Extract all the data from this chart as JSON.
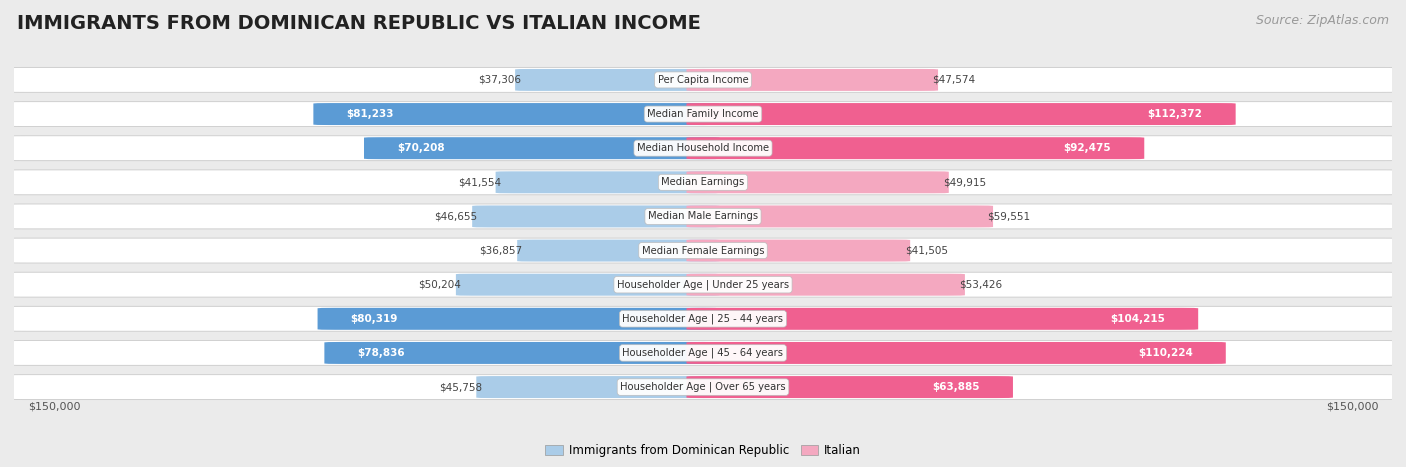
{
  "title": "IMMIGRANTS FROM DOMINICAN REPUBLIC VS ITALIAN INCOME",
  "source": "Source: ZipAtlas.com",
  "categories": [
    "Per Capita Income",
    "Median Family Income",
    "Median Household Income",
    "Median Earnings",
    "Median Male Earnings",
    "Median Female Earnings",
    "Householder Age | Under 25 years",
    "Householder Age | 25 - 44 years",
    "Householder Age | 45 - 64 years",
    "Householder Age | Over 65 years"
  ],
  "dominican_values": [
    37306,
    81233,
    70208,
    41554,
    46655,
    36857,
    50204,
    80319,
    78836,
    45758
  ],
  "italian_values": [
    47574,
    112372,
    92475,
    49915,
    59551,
    41505,
    53426,
    104215,
    110224,
    63885
  ],
  "dominican_labels": [
    "$37,306",
    "$81,233",
    "$70,208",
    "$41,554",
    "$46,655",
    "$36,857",
    "$50,204",
    "$80,319",
    "$78,836",
    "$45,758"
  ],
  "italian_labels": [
    "$47,574",
    "$112,372",
    "$92,475",
    "$49,915",
    "$59,551",
    "$41,505",
    "$53,426",
    "$104,215",
    "$110,224",
    "$63,885"
  ],
  "dominican_color_light": "#aacce8",
  "dominican_color_dark": "#5b9bd5",
  "italian_color_light": "#f4a8c0",
  "italian_color_dark": "#f06090",
  "bg_color": "#ebebeb",
  "row_bg": "#ffffff",
  "max_value": 150000,
  "label_axis": "$150,000",
  "title_fontsize": 14,
  "source_fontsize": 9,
  "inside_label_threshold": 60000,
  "bar_height": 0.62
}
